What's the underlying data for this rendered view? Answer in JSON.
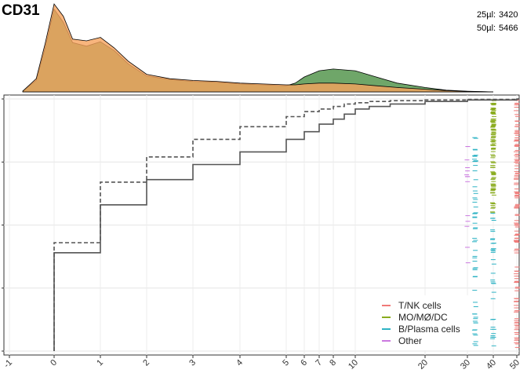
{
  "chart_data": {
    "type": "line",
    "title": "CD31",
    "x_scale": "pseudo-log",
    "x_ticks": [
      -1,
      0,
      1,
      2,
      3,
      4,
      5,
      6,
      7,
      8,
      10,
      20,
      30,
      40,
      50
    ],
    "xlim": [
      -1,
      50
    ],
    "ylim": [
      0,
      1
    ],
    "grid": true,
    "sample_counts": [
      {
        "label": "25µl:",
        "value": "3420"
      },
      {
        "label": "50µl:",
        "value": "5466"
      }
    ],
    "density": {
      "x": [
        -0.7,
        -0.4,
        -0.2,
        0,
        0.2,
        0.4,
        0.7,
        1,
        1.3,
        1.6,
        2,
        2.5,
        3,
        3.5,
        4,
        4.5,
        5,
        5.5,
        6,
        7,
        8,
        10,
        13,
        16,
        20,
        25,
        30,
        40
      ],
      "series": [
        {
          "name": "25µl",
          "color": "#f6a35c",
          "values": [
            0.01,
            0.15,
            0.55,
            1.0,
            0.86,
            0.6,
            0.58,
            0.62,
            0.5,
            0.35,
            0.2,
            0.15,
            0.13,
            0.12,
            0.1,
            0.09,
            0.08,
            0.08,
            0.09,
            0.1,
            0.1,
            0.09,
            0.07,
            0.05,
            0.03,
            0.015,
            0.005,
            0.0
          ]
        },
        {
          "name": "50µl",
          "color": "#5f9c59",
          "values": [
            0.01,
            0.13,
            0.5,
            0.94,
            0.79,
            0.56,
            0.52,
            0.57,
            0.47,
            0.32,
            0.18,
            0.14,
            0.12,
            0.11,
            0.09,
            0.08,
            0.07,
            0.1,
            0.17,
            0.24,
            0.26,
            0.24,
            0.17,
            0.1,
            0.05,
            0.02,
            0.008,
            0.0
          ]
        }
      ]
    },
    "ecdf": [
      {
        "name": "25µl",
        "style": "dashed",
        "x": [
          0,
          1,
          2,
          3,
          4,
          5,
          6,
          7,
          8,
          9,
          10,
          12,
          15,
          20,
          30,
          50
        ],
        "y": [
          0.43,
          0.67,
          0.77,
          0.84,
          0.89,
          0.93,
          0.95,
          0.96,
          0.97,
          0.98,
          0.985,
          0.99,
          0.993,
          0.996,
          0.998,
          1.0
        ]
      },
      {
        "name": "50µl",
        "style": "solid",
        "x": [
          0,
          1,
          2,
          3,
          4,
          5,
          6,
          7,
          8,
          9,
          10,
          12,
          15,
          20,
          30,
          50
        ],
        "y": [
          0.39,
          0.58,
          0.68,
          0.74,
          0.79,
          0.84,
          0.87,
          0.9,
          0.92,
          0.94,
          0.96,
          0.97,
          0.98,
          0.99,
          0.996,
          1.0
        ]
      }
    ],
    "legend": {
      "position": "bottom-right",
      "entries": [
        {
          "label": "T/NK cells",
          "color": "#f07a78"
        },
        {
          "label": "MO/MØ/DC",
          "color": "#8aac1e"
        },
        {
          "label": "B/Plasma cells",
          "color": "#2eb3c4"
        },
        {
          "label": "Other",
          "color": "#cb79e0"
        }
      ]
    },
    "rug": {
      "columns": [
        {
          "x": 30,
          "group": "Other",
          "y_range": [
            0.35,
            0.85
          ],
          "count": 14
        },
        {
          "x": 33,
          "group": "B/Plasma cells",
          "y_range": [
            0.02,
            0.85
          ],
          "count": 60
        },
        {
          "x": 40,
          "group": "MO/MØ/DC",
          "y_range": [
            0.55,
            1.0
          ],
          "count": 110
        },
        {
          "x": 40,
          "group": "B/Plasma cells",
          "y_range": [
            0.02,
            0.55
          ],
          "count": 35
        },
        {
          "x": 50,
          "group": "T/NK cells",
          "y_range": [
            0.0,
            1.0
          ],
          "count": 130
        }
      ]
    }
  }
}
